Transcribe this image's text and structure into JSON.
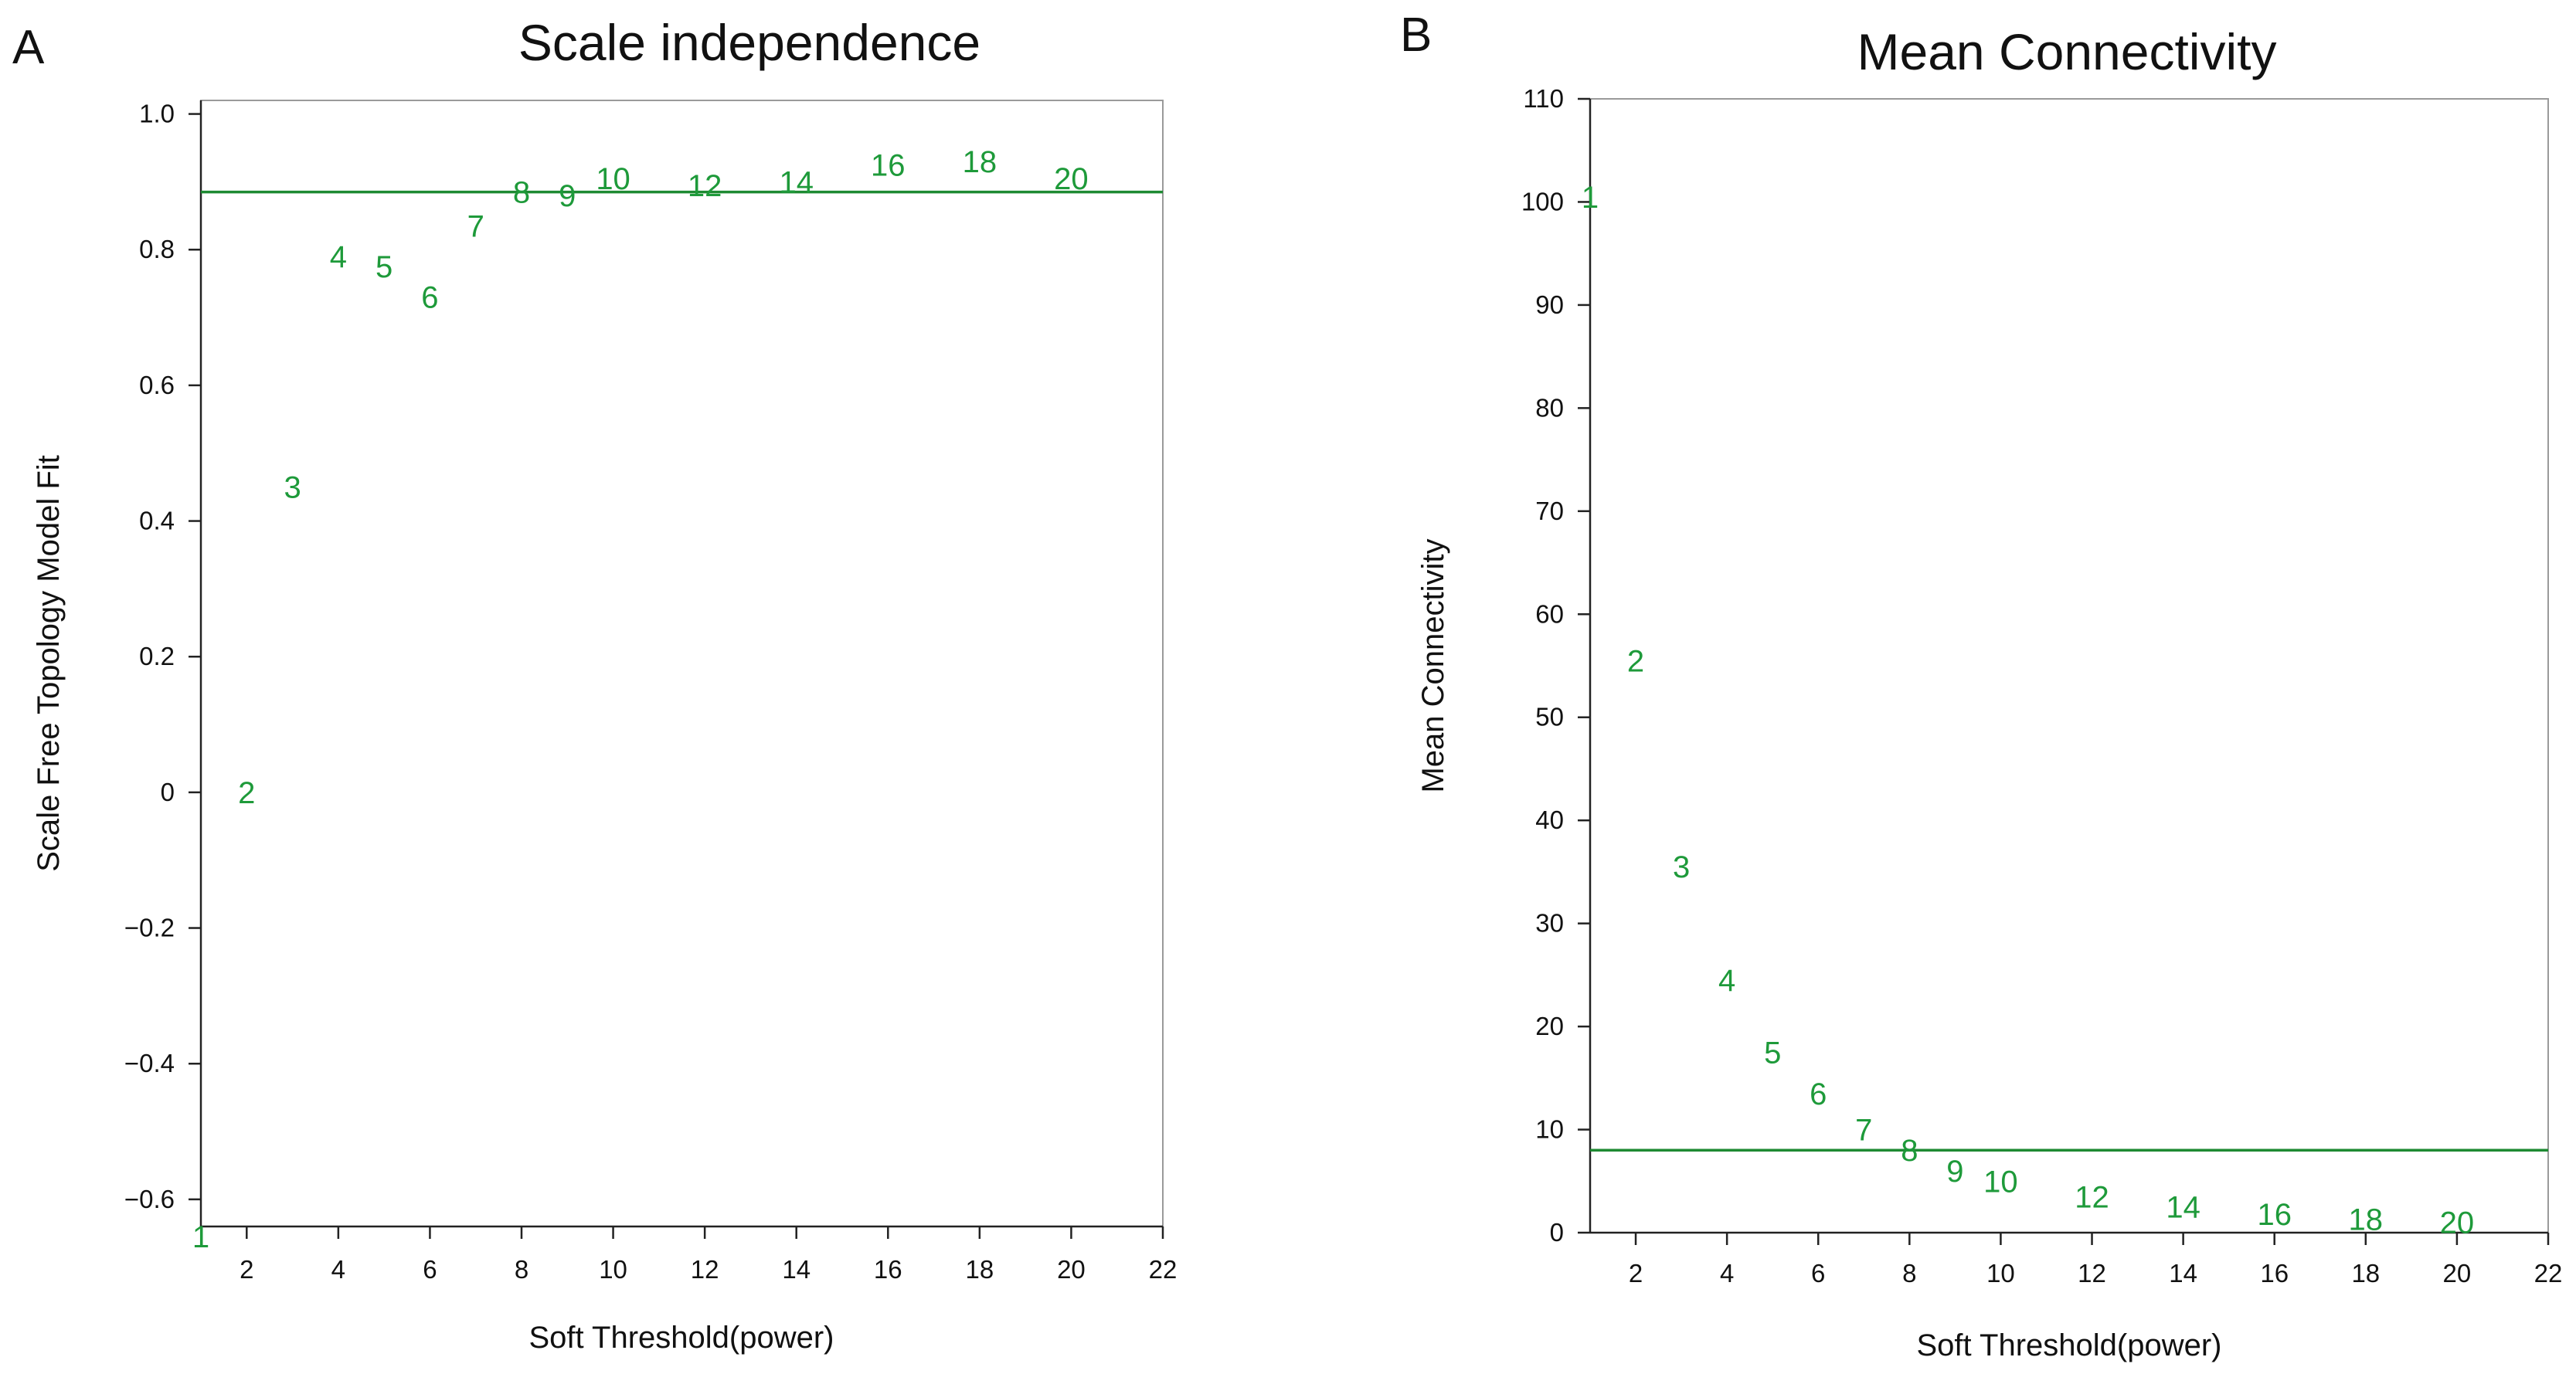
{
  "colors": {
    "series": "#1e9a3a",
    "threshold": "#1e8a32"
  },
  "chart_data": [
    {
      "type": "scatter",
      "panel_label": "A",
      "title": "Scale independence",
      "xlabel": "Soft Threshold(power)",
      "ylabel": "Scale Free Topology Model Fit",
      "xlim": [
        1,
        22
      ],
      "ylim": [
        -0.64,
        1.02
      ],
      "xticks": [
        2,
        4,
        6,
        8,
        10,
        12,
        14,
        16,
        18,
        20,
        22
      ],
      "yticks": [
        -0.6,
        -0.4,
        -0.2,
        0,
        0.2,
        0.4,
        0.6,
        0.8,
        1.0
      ],
      "ytick_labels": [
        "−0.6",
        "−0.4",
        "−0.2",
        "0",
        "0.2",
        "0.4",
        "0.6",
        "0.8",
        "1.0"
      ],
      "threshold_line": 0.885,
      "points": [
        {
          "x": 1,
          "y": -0.655,
          "label": "1"
        },
        {
          "x": 2,
          "y": 0.0,
          "label": "2"
        },
        {
          "x": 3,
          "y": 0.45,
          "label": "3"
        },
        {
          "x": 4,
          "y": 0.79,
          "label": "4"
        },
        {
          "x": 5,
          "y": 0.775,
          "label": "5"
        },
        {
          "x": 6,
          "y": 0.73,
          "label": "6"
        },
        {
          "x": 7,
          "y": 0.835,
          "label": "7"
        },
        {
          "x": 8,
          "y": 0.885,
          "label": "8"
        },
        {
          "x": 9,
          "y": 0.88,
          "label": "9"
        },
        {
          "x": 10,
          "y": 0.905,
          "label": "10"
        },
        {
          "x": 12,
          "y": 0.895,
          "label": "12"
        },
        {
          "x": 14,
          "y": 0.9,
          "label": "14"
        },
        {
          "x": 16,
          "y": 0.925,
          "label": "16"
        },
        {
          "x": 18,
          "y": 0.93,
          "label": "18"
        },
        {
          "x": 20,
          "y": 0.905,
          "label": "20"
        }
      ]
    },
    {
      "type": "scatter",
      "panel_label": "B",
      "title": "Mean Connectivity",
      "xlabel": "Soft Threshold(power)",
      "ylabel": "Mean Connectivity",
      "xlim": [
        1,
        22
      ],
      "ylim": [
        0,
        110
      ],
      "xticks": [
        2,
        4,
        6,
        8,
        10,
        12,
        14,
        16,
        18,
        20,
        22
      ],
      "yticks": [
        0,
        10,
        20,
        30,
        40,
        50,
        60,
        70,
        80,
        90,
        100,
        110
      ],
      "ytick_labels": [
        "0",
        "10",
        "20",
        "30",
        "40",
        "50",
        "60",
        "70",
        "80",
        "90",
        "100",
        "110"
      ],
      "threshold_line": 8,
      "points": [
        {
          "x": 1,
          "y": 100.5,
          "label": "1"
        },
        {
          "x": 2,
          "y": 55.5,
          "label": "2"
        },
        {
          "x": 3,
          "y": 35.5,
          "label": "3"
        },
        {
          "x": 4,
          "y": 24.5,
          "label": "4"
        },
        {
          "x": 5,
          "y": 17.5,
          "label": "5"
        },
        {
          "x": 6,
          "y": 13.5,
          "label": "6"
        },
        {
          "x": 7,
          "y": 10.0,
          "label": "7"
        },
        {
          "x": 8,
          "y": 8.0,
          "label": "8"
        },
        {
          "x": 9,
          "y": 6.0,
          "label": "9"
        },
        {
          "x": 10,
          "y": 5.0,
          "label": "10"
        },
        {
          "x": 12,
          "y": 3.5,
          "label": "12"
        },
        {
          "x": 14,
          "y": 2.5,
          "label": "14"
        },
        {
          "x": 16,
          "y": 1.8,
          "label": "16"
        },
        {
          "x": 18,
          "y": 1.3,
          "label": "18"
        },
        {
          "x": 20,
          "y": 1.0,
          "label": "20"
        }
      ]
    }
  ]
}
